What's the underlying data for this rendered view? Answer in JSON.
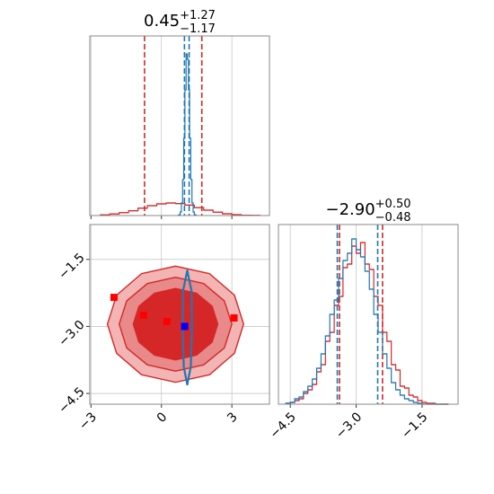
{
  "chart_data": [
    {
      "type": "histogram",
      "title": "0.45",
      "title_upper": "+1.27",
      "title_lower": "−1.17",
      "xlim": [
        -3.05,
        4.6
      ],
      "ylim": [
        0,
        1
      ],
      "xticks": [
        -3,
        0,
        3
      ],
      "xticklabels": false,
      "grid": true,
      "series": [
        {
          "color": "#d62728",
          "bins": [
            -2.6,
            -2.2,
            -1.8,
            -1.4,
            -1.0,
            -0.6,
            -0.2,
            0.2,
            0.6,
            1.0,
            1.4,
            1.8,
            2.2,
            2.6,
            3.0,
            3.4,
            3.8,
            4.2
          ],
          "values": [
            0.004,
            0.009,
            0.016,
            0.027,
            0.041,
            0.055,
            0.065,
            0.07,
            0.067,
            0.058,
            0.044,
            0.03,
            0.019,
            0.01,
            0.005,
            0.002,
            0.001
          ],
          "quantiles": [
            -0.72,
            1.72
          ]
        },
        {
          "color": "#1f77b4",
          "bins": [
            0.7,
            0.75,
            0.8,
            0.85,
            0.9,
            0.95,
            1.0,
            1.05,
            1.1,
            1.15,
            1.2,
            1.25,
            1.3,
            1.35,
            1.4,
            1.45,
            1.5
          ],
          "values": [
            0.001,
            0.005,
            0.02,
            0.07,
            0.2,
            0.43,
            0.7,
            0.9,
            0.87,
            0.7,
            0.43,
            0.2,
            0.07,
            0.02,
            0.005,
            0.001
          ],
          "quantiles": [
            0.98,
            1.18
          ]
        }
      ]
    },
    {
      "type": "contour",
      "xlim": [
        -3.05,
        4.6
      ],
      "ylim": [
        -4.74,
        -0.72
      ],
      "xticks": [
        {
          "value": -3,
          "label": "−3"
        },
        0,
        3
      ],
      "yticks": [
        {
          "value": -1.5,
          "label": "−1.5"
        },
        {
          "value": -3.0,
          "label": "−3.0"
        },
        {
          "value": -4.5,
          "label": "−4.5"
        }
      ],
      "grid": true,
      "contours": [
        {
          "color": "#d62728",
          "fill": "#f3b4b4",
          "x": [
            3.5,
            3.11,
            2.05,
            0.6,
            -0.85,
            -1.91,
            -2.3,
            -1.91,
            -0.85,
            0.6,
            2.05,
            3.11
          ],
          "y": [
            -2.95,
            -2.3,
            -1.82,
            -1.65,
            -1.82,
            -2.3,
            -2.95,
            -3.6,
            -4.08,
            -4.25,
            -4.08,
            -3.6
          ]
        },
        {
          "color": "#d62728",
          "fill": "#e8898a",
          "x": [
            3.0,
            2.68,
            1.8,
            0.6,
            -0.6,
            -1.48,
            -1.8,
            -1.48,
            -0.6,
            0.6,
            1.8,
            2.68
          ],
          "y": [
            -2.95,
            -2.43,
            -2.04,
            -1.9,
            -2.04,
            -2.43,
            -2.95,
            -3.48,
            -3.86,
            -4.0,
            -3.86,
            -3.48
          ]
        },
        {
          "color": "#d62728",
          "fill": "#d62728",
          "x": [
            2.4,
            2.16,
            1.5,
            0.6,
            -0.3,
            -0.96,
            -1.2,
            -0.96,
            -0.3,
            0.6,
            1.5,
            2.16
          ],
          "y": [
            -2.95,
            -2.55,
            -2.26,
            -2.15,
            -2.26,
            -2.55,
            -2.95,
            -3.35,
            -3.64,
            -3.75,
            -3.64,
            -3.35
          ]
        },
        {
          "color": "#1f77b4",
          "fill": "none",
          "x": [
            1.1,
            1.28,
            1.3,
            1.25,
            1.1,
            0.95,
            0.9,
            0.92
          ],
          "y": [
            -1.75,
            -2.2,
            -3.0,
            -3.9,
            -4.3,
            -3.9,
            -3.0,
            -2.2
          ]
        }
      ],
      "points": [
        {
          "color": "#ff0000",
          "x": [
            -2.02,
            -0.76,
            0.23,
            3.09
          ],
          "y": [
            -2.35,
            -2.75,
            -2.89,
            -2.81
          ]
        },
        {
          "color": "#0000ff",
          "x": [
            0.99
          ],
          "y": [
            -3.0
          ]
        }
      ]
    },
    {
      "type": "histogram",
      "title": "−2.90",
      "title_upper": "+0.50",
      "title_lower": "−0.48",
      "xlim": [
        -4.77,
        -0.68
      ],
      "ylim": [
        0,
        1
      ],
      "xticks": [
        {
          "value": -4.5,
          "label": "−4.5"
        },
        {
          "value": -3.0,
          "label": "−3.0"
        },
        {
          "value": -1.5,
          "label": "−1.5"
        }
      ],
      "grid": true,
      "series": [
        {
          "color": "#d62728",
          "bins": [
            -4.6,
            -4.5,
            -4.4,
            -4.3,
            -4.2,
            -4.1,
            -4.0,
            -3.9,
            -3.8,
            -3.7,
            -3.6,
            -3.5,
            -3.4,
            -3.3,
            -3.2,
            -3.1,
            -3.0,
            -2.9,
            -2.8,
            -2.7,
            -2.6,
            -2.5,
            -2.4,
            -2.3,
            -2.2,
            -2.1,
            -2.0,
            -1.9,
            -1.8,
            -1.7,
            -1.6,
            -1.5,
            -1.4,
            -1.3,
            -1.2,
            -1.1,
            -1.0,
            -0.9
          ],
          "values": [
            0.005,
            0.01,
            0.02,
            0.03,
            0.06,
            0.08,
            0.11,
            0.18,
            0.22,
            0.35,
            0.4,
            0.55,
            0.6,
            0.76,
            0.78,
            0.88,
            0.84,
            0.9,
            0.78,
            0.75,
            0.6,
            0.55,
            0.4,
            0.35,
            0.22,
            0.19,
            0.1,
            0.09,
            0.05,
            0.04,
            0.02,
            0.01,
            0.005,
            0.005,
            0,
            0,
            0
          ],
          "quantiles": [
            -3.38,
            -2.4
          ]
        },
        {
          "color": "#1f77b4",
          "bins": [
            -4.6,
            -4.5,
            -4.4,
            -4.3,
            -4.2,
            -4.1,
            -4.0,
            -3.9,
            -3.8,
            -3.7,
            -3.6,
            -3.5,
            -3.4,
            -3.3,
            -3.2,
            -3.1,
            -3.0,
            -2.9,
            -2.8,
            -2.7,
            -2.6,
            -2.5,
            -2.4,
            -2.3,
            -2.2,
            -2.1,
            -2.0,
            -1.9,
            -1.8,
            -1.7,
            -1.6,
            -1.5,
            -1.4,
            -1.3,
            -1.2,
            -1.1,
            -1.0,
            -0.9
          ],
          "values": [
            0.005,
            0.01,
            0.03,
            0.04,
            0.07,
            0.1,
            0.14,
            0.2,
            0.28,
            0.38,
            0.5,
            0.58,
            0.7,
            0.8,
            0.84,
            0.92,
            0.86,
            0.82,
            0.74,
            0.64,
            0.5,
            0.4,
            0.28,
            0.2,
            0.12,
            0.08,
            0.05,
            0.03,
            0.02,
            0.01,
            0.005,
            0,
            0,
            0,
            0,
            0,
            0
          ],
          "quantiles": [
            -3.43,
            -2.51
          ]
        }
      ]
    }
  ]
}
